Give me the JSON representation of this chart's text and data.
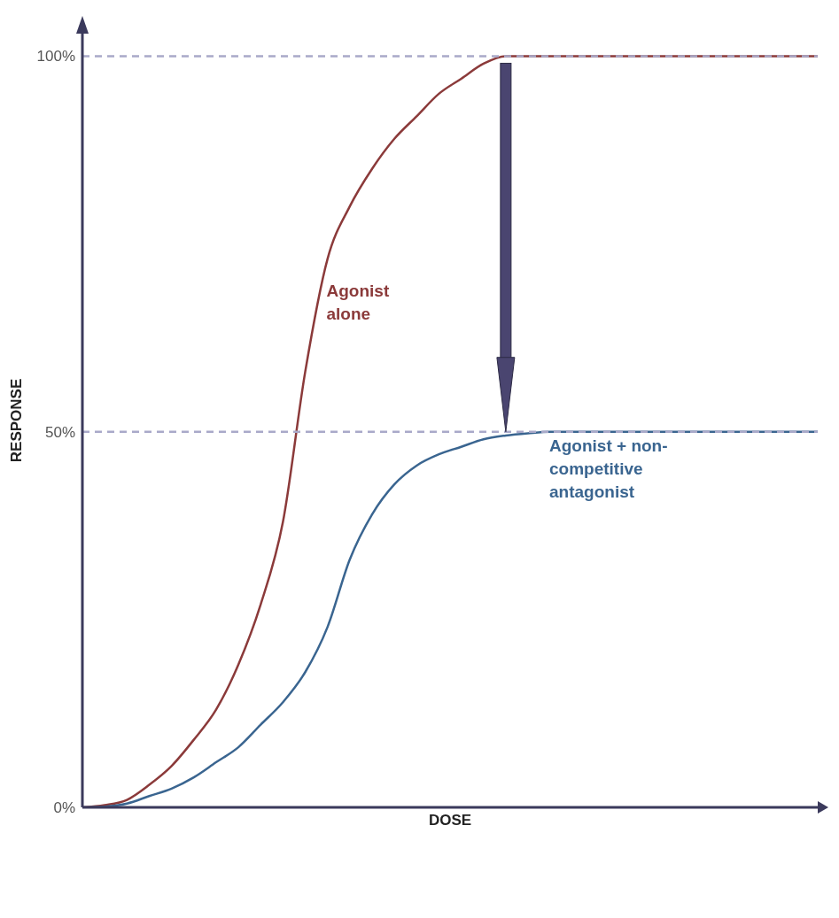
{
  "chart_data": {
    "type": "line",
    "xlabel": "DOSE",
    "ylabel": "RESPONSE",
    "marker": "none",
    "categories": [
      null,
      null,
      null,
      null,
      null,
      null,
      null,
      null,
      null,
      null,
      null,
      null,
      null,
      null,
      null,
      null,
      null,
      null,
      null,
      null,
      null,
      null,
      null,
      null,
      null,
      null,
      null,
      null,
      null,
      null,
      null,
      null,
      null,
      null
    ],
    "ylim": [
      0,
      103
    ],
    "yticks": [
      {
        "value": 0,
        "label": "0%"
      },
      {
        "value": 50,
        "label": "50%"
      },
      {
        "value": 100,
        "label": "100%"
      }
    ],
    "ref_lines": [
      {
        "axis": "y",
        "value": 50,
        "color": "#a9a9c9",
        "line_style": "dashed"
      },
      {
        "axis": "y",
        "value": 100,
        "color": "#a9a9c9",
        "line_style": "dashed"
      }
    ],
    "series": [
      {
        "name": "Agonist alone",
        "color": "#8b3a3a",
        "values": [
          0,
          0.3,
          1,
          3,
          5.5,
          9,
          13,
          19,
          27,
          38,
          58,
          73,
          80,
          85,
          89,
          92,
          95,
          97,
          99,
          100,
          100,
          100,
          100,
          100,
          100,
          100,
          100,
          100,
          100,
          100,
          100,
          100,
          100,
          100
        ]
      },
      {
        "name": "Agonist + non-competitive antagonist",
        "color": "#3a6590",
        "values": [
          0,
          0.1,
          0.5,
          1.5,
          2.5,
          4,
          6,
          8,
          11,
          14,
          18,
          24,
          33,
          39,
          43,
          45.5,
          47,
          48,
          49,
          49.5,
          49.8,
          50,
          50,
          50,
          50,
          50,
          50,
          50,
          50,
          50,
          50,
          50,
          50,
          50
        ]
      }
    ]
  }
}
